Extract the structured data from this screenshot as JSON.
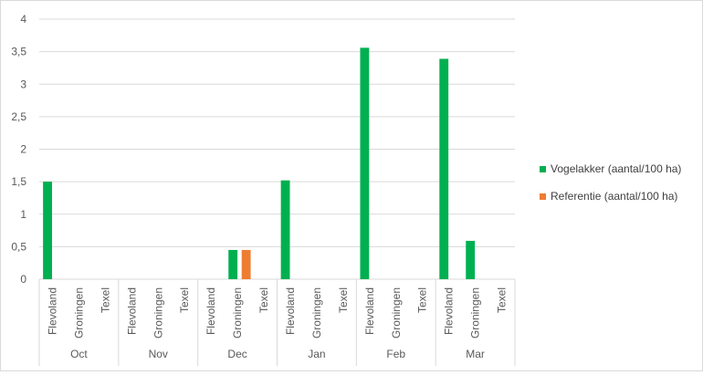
{
  "chart_data": {
    "type": "bar",
    "title": "",
    "xlabel": "",
    "ylabel": "",
    "ylim": [
      0,
      4
    ],
    "yticks": [
      0,
      0.5,
      1,
      1.5,
      2,
      2.5,
      3,
      3.5,
      4
    ],
    "ytick_labels": [
      "0",
      "0,5",
      "1",
      "1,5",
      "2",
      "2,5",
      "3",
      "3,5",
      "4"
    ],
    "grid": true,
    "legend_position": "right",
    "groups": [
      {
        "label": "Oct",
        "categories": [
          "Flevoland",
          "Groningen",
          "Texel"
        ]
      },
      {
        "label": "Nov",
        "categories": [
          "Flevoland",
          "Groningen",
          "Texel"
        ]
      },
      {
        "label": "Dec",
        "categories": [
          "Flevoland",
          "Groningen",
          "Texel"
        ]
      },
      {
        "label": "Jan",
        "categories": [
          "Flevoland",
          "Groningen",
          "Texel"
        ]
      },
      {
        "label": "Feb",
        "categories": [
          "Flevoland",
          "Groningen",
          "Texel"
        ]
      },
      {
        "label": "Mar",
        "categories": [
          "Flevoland",
          "Groningen",
          "Texel"
        ]
      }
    ],
    "series": [
      {
        "name": "Vogelakker (aantal/100 ha)",
        "color": "#00b050",
        "values": [
          1.5,
          0,
          0,
          0,
          0,
          0,
          0,
          0.45,
          0,
          1.52,
          0,
          0,
          3.56,
          0,
          0,
          3.39,
          0.59,
          0
        ]
      },
      {
        "name": "Referentie (aantal/100 ha)",
        "color": "#ed7d31",
        "values": [
          0,
          0,
          0,
          0,
          0,
          0,
          0,
          0.45,
          0,
          0,
          0,
          0,
          0,
          0,
          0,
          0,
          0,
          0
        ]
      }
    ]
  }
}
